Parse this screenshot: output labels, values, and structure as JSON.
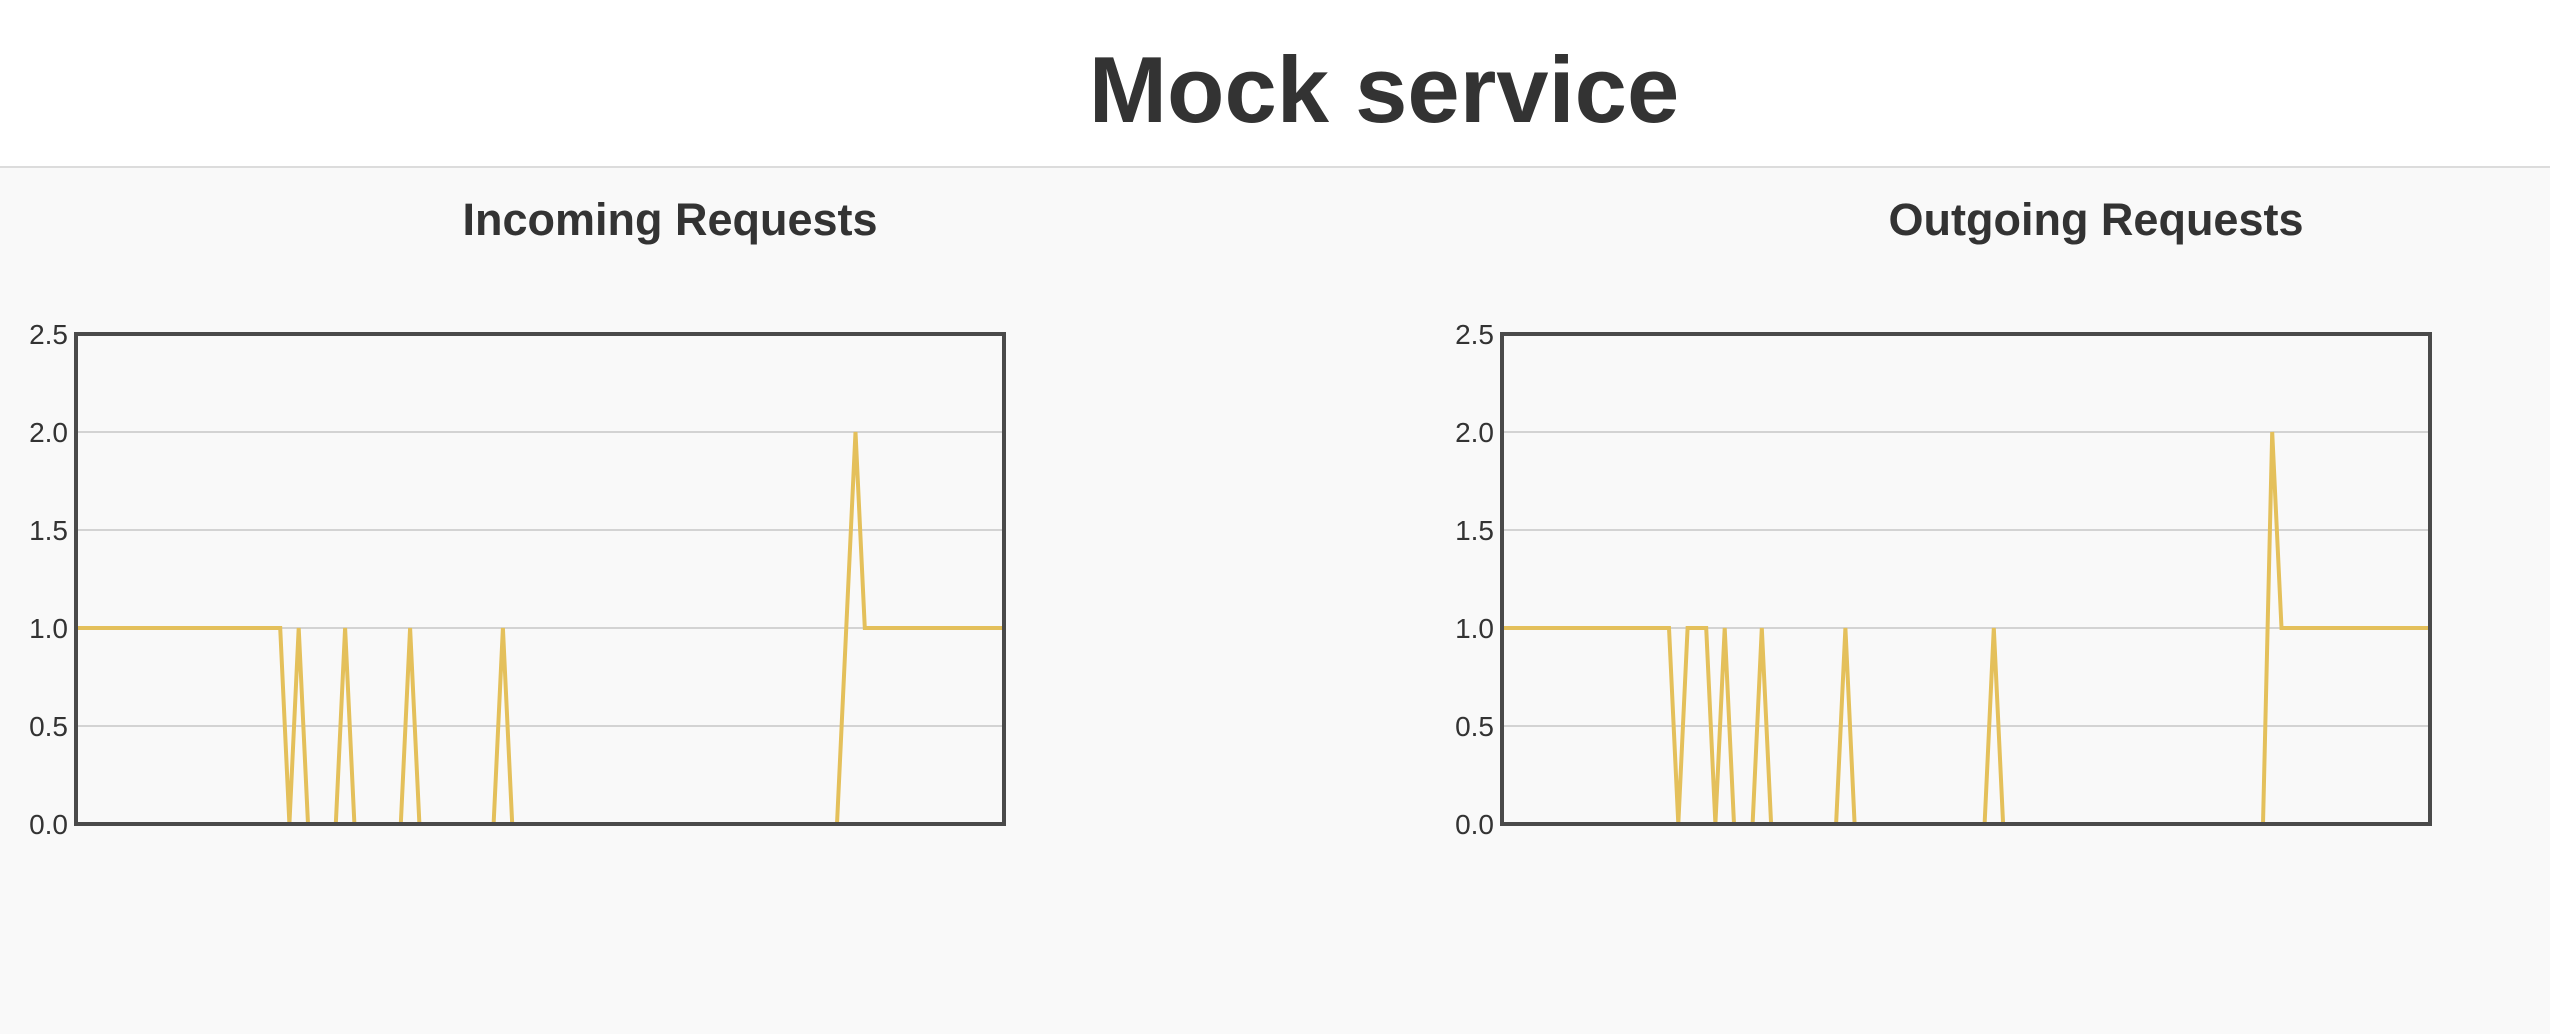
{
  "page": {
    "title": "Mock service"
  },
  "chart_data": [
    {
      "type": "line",
      "title": "Incoming Requests",
      "xlabel": "",
      "ylabel": "",
      "ylim": [
        0,
        2.5
      ],
      "yticks": [
        "0.0",
        "0.5",
        "1.0",
        "1.5",
        "2.0",
        "2.5"
      ],
      "grid": true,
      "legend": "none",
      "line_color": "#e4c05b",
      "frame_color": "#4a4a4a",
      "grid_color": "#d3d3d3",
      "x": [
        0,
        11,
        11.5,
        12,
        12.5,
        13,
        14,
        14.5,
        15,
        17.5,
        18,
        18.5,
        22.5,
        23,
        23.5,
        26,
        27,
        32,
        34,
        36,
        37.5,
        39,
        41,
        42,
        42.5,
        43,
        50
      ],
      "values": [
        1,
        1,
        0,
        1,
        0,
        0,
        0,
        1,
        0,
        0,
        1,
        0,
        0,
        1,
        0,
        0,
        0,
        0,
        0,
        0,
        0,
        0,
        0,
        2,
        1,
        1,
        1
      ]
    },
    {
      "type": "line",
      "title": "Outgoing Requests",
      "xlabel": "",
      "ylabel": "",
      "ylim": [
        0,
        2.5
      ],
      "yticks": [
        "0.0",
        "0.5",
        "1.0",
        "1.5",
        "2.0",
        "2.5"
      ],
      "grid": true,
      "legend": "none",
      "line_color": "#e4c05b",
      "frame_color": "#4a4a4a",
      "grid_color": "#d3d3d3",
      "x": [
        0,
        9,
        9.5,
        10,
        11,
        11.5,
        12,
        12.5,
        13.5,
        14,
        14.5,
        18,
        18.5,
        19,
        26,
        26.5,
        27,
        35,
        36,
        40,
        41,
        41.5,
        42,
        50
      ],
      "values": [
        1,
        1,
        0,
        1,
        1,
        0,
        1,
        0,
        0,
        1,
        0,
        0,
        1,
        0,
        0,
        1,
        0,
        0,
        0,
        0,
        0,
        2,
        1,
        1
      ]
    }
  ]
}
